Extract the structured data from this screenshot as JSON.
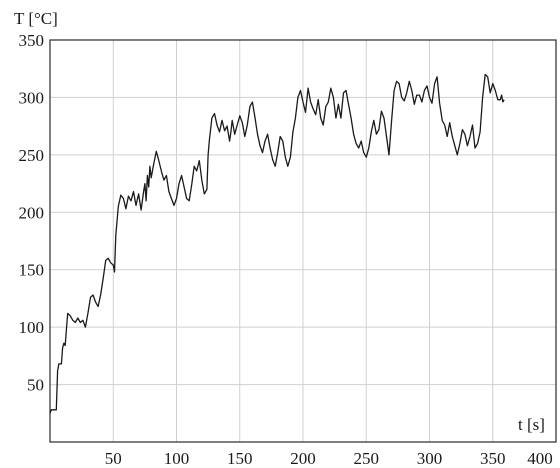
{
  "chart_data": {
    "type": "line",
    "title": "",
    "ylabel": "T [°C]",
    "xlabel": "t [s]",
    "xlim": [
      0,
      400
    ],
    "ylim": [
      0,
      350
    ],
    "x_ticks": [
      50,
      100,
      150,
      200,
      250,
      300,
      350,
      400
    ],
    "y_ticks": [
      50,
      100,
      150,
      200,
      250,
      300,
      350
    ],
    "grid": true,
    "series": [
      {
        "values": [
          [
            0,
            25
          ],
          [
            1,
            28
          ],
          [
            5,
            28
          ],
          [
            6,
            62
          ],
          [
            7,
            68
          ],
          [
            9,
            68
          ],
          [
            10,
            82
          ],
          [
            11,
            86
          ],
          [
            12,
            84
          ],
          [
            13,
            98
          ],
          [
            14,
            112
          ],
          [
            16,
            110
          ],
          [
            18,
            106
          ],
          [
            20,
            104
          ],
          [
            22,
            108
          ],
          [
            24,
            104
          ],
          [
            26,
            106
          ],
          [
            28,
            100
          ],
          [
            30,
            112
          ],
          [
            32,
            126
          ],
          [
            34,
            128
          ],
          [
            36,
            122
          ],
          [
            38,
            118
          ],
          [
            40,
            128
          ],
          [
            42,
            142
          ],
          [
            44,
            158
          ],
          [
            46,
            160
          ],
          [
            48,
            156
          ],
          [
            50,
            154
          ],
          [
            51,
            148
          ],
          [
            52,
            180
          ],
          [
            54,
            205
          ],
          [
            56,
            215
          ],
          [
            58,
            212
          ],
          [
            60,
            203
          ],
          [
            62,
            214
          ],
          [
            64,
            210
          ],
          [
            66,
            218
          ],
          [
            68,
            206
          ],
          [
            70,
            216
          ],
          [
            72,
            202
          ],
          [
            74,
            218
          ],
          [
            75,
            225
          ],
          [
            76,
            210
          ],
          [
            77,
            232
          ],
          [
            78,
            222
          ],
          [
            79,
            240
          ],
          [
            80,
            230
          ],
          [
            82,
            242
          ],
          [
            84,
            253
          ],
          [
            86,
            245
          ],
          [
            88,
            236
          ],
          [
            90,
            228
          ],
          [
            92,
            232
          ],
          [
            94,
            218
          ],
          [
            96,
            212
          ],
          [
            98,
            206
          ],
          [
            100,
            212
          ],
          [
            102,
            225
          ],
          [
            104,
            232
          ],
          [
            106,
            222
          ],
          [
            108,
            212
          ],
          [
            110,
            210
          ],
          [
            112,
            224
          ],
          [
            114,
            240
          ],
          [
            116,
            236
          ],
          [
            118,
            245
          ],
          [
            120,
            228
          ],
          [
            122,
            216
          ],
          [
            124,
            220
          ],
          [
            125,
            250
          ],
          [
            126,
            263
          ],
          [
            128,
            282
          ],
          [
            130,
            286
          ],
          [
            132,
            276
          ],
          [
            134,
            270
          ],
          [
            136,
            280
          ],
          [
            138,
            271
          ],
          [
            140,
            275
          ],
          [
            142,
            262
          ],
          [
            143,
            270
          ],
          [
            144,
            280
          ],
          [
            146,
            268
          ],
          [
            148,
            276
          ],
          [
            150,
            284
          ],
          [
            152,
            278
          ],
          [
            154,
            266
          ],
          [
            156,
            276
          ],
          [
            158,
            292
          ],
          [
            160,
            296
          ],
          [
            162,
            283
          ],
          [
            164,
            268
          ],
          [
            166,
            258
          ],
          [
            168,
            252
          ],
          [
            170,
            262
          ],
          [
            172,
            268
          ],
          [
            174,
            256
          ],
          [
            176,
            246
          ],
          [
            178,
            240
          ],
          [
            180,
            252
          ],
          [
            182,
            266
          ],
          [
            184,
            262
          ],
          [
            186,
            248
          ],
          [
            188,
            240
          ],
          [
            190,
            248
          ],
          [
            192,
            270
          ],
          [
            194,
            282
          ],
          [
            196,
            300
          ],
          [
            198,
            306
          ],
          [
            200,
            296
          ],
          [
            202,
            287
          ],
          [
            204,
            308
          ],
          [
            206,
            296
          ],
          [
            208,
            290
          ],
          [
            210,
            285
          ],
          [
            212,
            298
          ],
          [
            214,
            282
          ],
          [
            216,
            276
          ],
          [
            218,
            292
          ],
          [
            220,
            296
          ],
          [
            222,
            308
          ],
          [
            224,
            300
          ],
          [
            226,
            282
          ],
          [
            228,
            294
          ],
          [
            230,
            282
          ],
          [
            232,
            304
          ],
          [
            234,
            306
          ],
          [
            236,
            294
          ],
          [
            238,
            282
          ],
          [
            240,
            268
          ],
          [
            242,
            260
          ],
          [
            244,
            256
          ],
          [
            246,
            262
          ],
          [
            248,
            252
          ],
          [
            250,
            248
          ],
          [
            252,
            256
          ],
          [
            254,
            270
          ],
          [
            256,
            280
          ],
          [
            258,
            268
          ],
          [
            260,
            272
          ],
          [
            262,
            288
          ],
          [
            264,
            282
          ],
          [
            266,
            266
          ],
          [
            268,
            250
          ],
          [
            270,
            280
          ],
          [
            272,
            306
          ],
          [
            274,
            314
          ],
          [
            276,
            312
          ],
          [
            278,
            300
          ],
          [
            280,
            297
          ],
          [
            282,
            304
          ],
          [
            284,
            314
          ],
          [
            286,
            306
          ],
          [
            288,
            294
          ],
          [
            290,
            302
          ],
          [
            292,
            302
          ],
          [
            294,
            296
          ],
          [
            296,
            306
          ],
          [
            298,
            310
          ],
          [
            300,
            300
          ],
          [
            302,
            295
          ],
          [
            304,
            312
          ],
          [
            306,
            318
          ],
          [
            308,
            295
          ],
          [
            310,
            280
          ],
          [
            312,
            276
          ],
          [
            314,
            266
          ],
          [
            316,
            278
          ],
          [
            318,
            266
          ],
          [
            320,
            258
          ],
          [
            322,
            250
          ],
          [
            324,
            260
          ],
          [
            326,
            272
          ],
          [
            328,
            268
          ],
          [
            330,
            258
          ],
          [
            332,
            266
          ],
          [
            334,
            276
          ],
          [
            336,
            256
          ],
          [
            338,
            260
          ],
          [
            340,
            270
          ],
          [
            342,
            300
          ],
          [
            344,
            320
          ],
          [
            346,
            318
          ],
          [
            348,
            304
          ],
          [
            350,
            312
          ],
          [
            352,
            306
          ],
          [
            354,
            298
          ],
          [
            356,
            298
          ],
          [
            357,
            302
          ],
          [
            358,
            296
          ],
          [
            359,
            298
          ]
        ]
      }
    ]
  }
}
